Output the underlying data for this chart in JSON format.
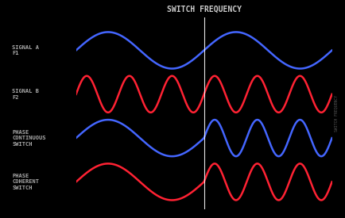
{
  "title": "SWITCH FREQUENCY",
  "title_color": "#cccccc",
  "background_color": "#000000",
  "blue_color": "#4466ff",
  "red_color": "#ff2233",
  "label_color": "#aaaaaa",
  "rows": [
    {
      "label": "SIGNAL A\nF1",
      "type": "signal_a",
      "color": "blue"
    },
    {
      "label": "SIGNAL B\nF2",
      "type": "signal_b",
      "color": "red"
    },
    {
      "label": "PHASE\nCONTINUOUS\nSWITCH",
      "type": "phase_continuous",
      "color": "blue"
    },
    {
      "label": "PHASE\nCOHERENT\nSWITCH",
      "type": "phase_coherent",
      "color": "red"
    }
  ],
  "lw": 1.8
}
